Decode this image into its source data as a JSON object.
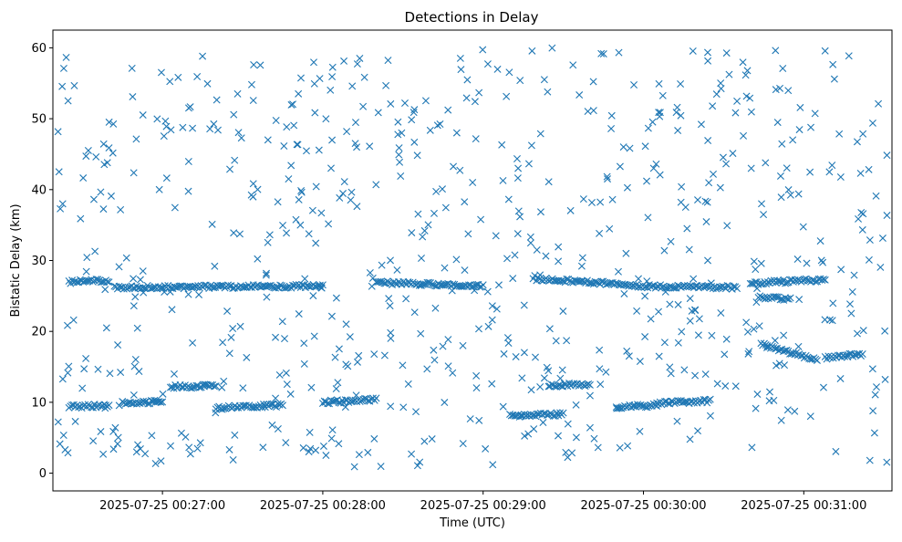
{
  "chart_data": {
    "type": "scatter",
    "title": "Detections in Delay",
    "xlabel": "Time (UTC)",
    "ylabel": "Bistatic Delay (km)",
    "marker": "x",
    "color": "#1f77b4",
    "grid": false,
    "x_ticks": [
      "2025-07-25 00:27:00",
      "2025-07-25 00:28:00",
      "2025-07-25 00:29:00",
      "2025-07-25 00:30:00",
      "2025-07-25 00:31:00"
    ],
    "y_ticks": [
      0,
      10,
      20,
      30,
      40,
      50,
      60
    ],
    "xlim": [
      "2025-07-25 00:26:19",
      "2025-07-25 00:31:33"
    ],
    "ylim": [
      -2.5,
      62.5
    ],
    "tracks": [
      {
        "from": "2025-07-25 00:26:25",
        "to": "2025-07-25 00:26:40",
        "y_start": 27.0,
        "y_end": 27.2
      },
      {
        "from": "2025-07-25 00:26:42",
        "to": "2025-07-25 00:28:00",
        "y_start": 26.2,
        "y_end": 26.4
      },
      {
        "from": "2025-07-25 00:28:20",
        "to": "2025-07-25 00:29:00",
        "y_start": 26.9,
        "y_end": 26.4
      },
      {
        "from": "2025-07-25 00:29:20",
        "to": "2025-07-25 00:29:55",
        "y_start": 27.4,
        "y_end": 26.6
      },
      {
        "from": "2025-07-25 00:29:55",
        "to": "2025-07-25 00:30:35",
        "y_start": 26.4,
        "y_end": 26.2
      },
      {
        "from": "2025-07-25 00:30:40",
        "to": "2025-07-25 00:31:08",
        "y_start": 26.8,
        "y_end": 27.3
      },
      {
        "from": "2025-07-25 00:30:43",
        "to": "2025-07-25 00:30:55",
        "y_start": 24.8,
        "y_end": 24.5
      },
      {
        "from": "2025-07-25 00:30:44",
        "to": "2025-07-25 00:31:05",
        "y_start": 18.2,
        "y_end": 16.0
      },
      {
        "from": "2025-07-25 00:31:08",
        "to": "2025-07-25 00:31:22",
        "y_start": 16.3,
        "y_end": 16.8
      },
      {
        "from": "2025-07-25 00:26:25",
        "to": "2025-07-25 00:26:40",
        "y_start": 9.4,
        "y_end": 9.5
      },
      {
        "from": "2025-07-25 00:26:45",
        "to": "2025-07-25 00:27:00",
        "y_start": 9.9,
        "y_end": 10.1
      },
      {
        "from": "2025-07-25 00:27:03",
        "to": "2025-07-25 00:27:20",
        "y_start": 12.2,
        "y_end": 12.3
      },
      {
        "from": "2025-07-25 00:27:20",
        "to": "2025-07-25 00:27:45",
        "y_start": 9.2,
        "y_end": 9.6
      },
      {
        "from": "2025-07-25 00:28:00",
        "to": "2025-07-25 00:28:20",
        "y_start": 10.0,
        "y_end": 10.4
      },
      {
        "from": "2025-07-25 00:29:10",
        "to": "2025-07-25 00:29:30",
        "y_start": 8.1,
        "y_end": 8.3
      },
      {
        "from": "2025-07-25 00:29:25",
        "to": "2025-07-25 00:29:40",
        "y_start": 12.4,
        "y_end": 12.5
      },
      {
        "from": "2025-07-25 00:29:50",
        "to": "2025-07-25 00:30:05",
        "y_start": 9.3,
        "y_end": 9.6
      },
      {
        "from": "2025-07-25 00:30:05",
        "to": "2025-07-25 00:30:25",
        "y_start": 9.9,
        "y_end": 10.2
      }
    ],
    "scatter_regions": [
      {
        "from": "2025-07-25 00:26:19",
        "to": "2025-07-25 00:31:33",
        "y_range": [
          0.5,
          60
        ],
        "count": 700
      }
    ]
  }
}
